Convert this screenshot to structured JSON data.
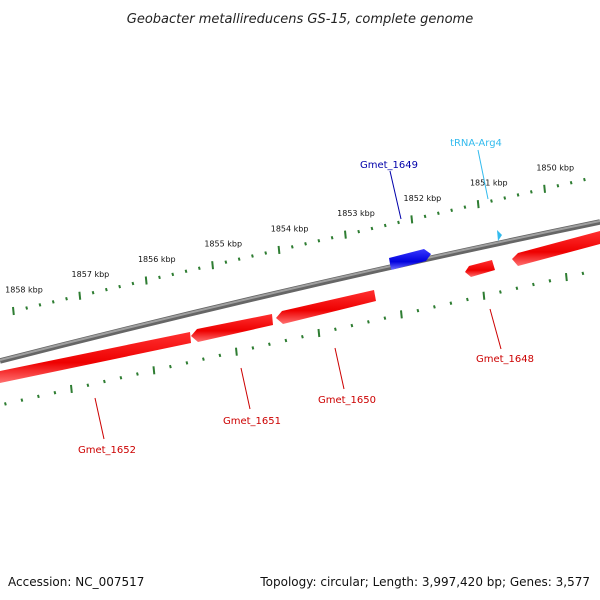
{
  "title": "Geobacter metallireducens GS-15, complete genome",
  "footer": {
    "accession": "Accession: NC_007517",
    "summary": "Topology: circular; Length: 3,997,420 bp; Genes: 3,577"
  },
  "colors": {
    "backbone": "#808080",
    "ticks": "#2e7d32",
    "forward_gene": "#1a1aff",
    "reverse_gene": "#ff1a1a",
    "trna": "#33bbee",
    "reverse_label": "#cc0000",
    "forward_label": "#0000aa"
  },
  "ticks": {
    "labels": [
      "1858 kbp",
      "1857 kbp",
      "1856 kbp",
      "1855 kbp",
      "1854 kbp",
      "1853 kbp",
      "1852 kbp",
      "1851 kbp",
      "1850 kbp"
    ]
  },
  "genes": {
    "gmet_1649": "Gmet_1649",
    "trna_arg4": "tRNA-Arg4",
    "gmet_1648": "Gmet_1648",
    "gmet_1650": "Gmet_1650",
    "gmet_1651": "Gmet_1651",
    "gmet_1652": "Gmet_1652"
  }
}
